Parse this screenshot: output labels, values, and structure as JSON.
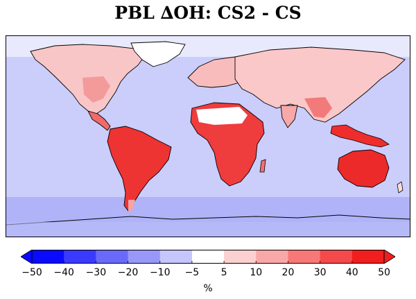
{
  "title": "PBL ∆OH: CS2 - CS",
  "colorbar": {
    "unit": "%",
    "ticks": [
      "−50",
      "−40",
      "−30",
      "−20",
      "−10",
      "−5",
      "5",
      "10",
      "20",
      "30",
      "40",
      "50"
    ],
    "levels": [
      -50,
      -40,
      -30,
      -20,
      -10,
      -5,
      5,
      10,
      20,
      30,
      40,
      50
    ],
    "colors": [
      "#0a0afc",
      "#3a3afc",
      "#6a6afa",
      "#9898f8",
      "#c5c6fb",
      "#ffffff",
      "#fbd0d0",
      "#f9a8a8",
      "#f87878",
      "#f44a4a",
      "#f11e1e"
    ],
    "extend": "both"
  },
  "colors": {
    "ocean": "#cbcdfb",
    "southern_ocean": "#b0b3f8",
    "land_low": "#f9c0c0",
    "land_high": "#ee2a2a",
    "coast": "#000000"
  }
}
